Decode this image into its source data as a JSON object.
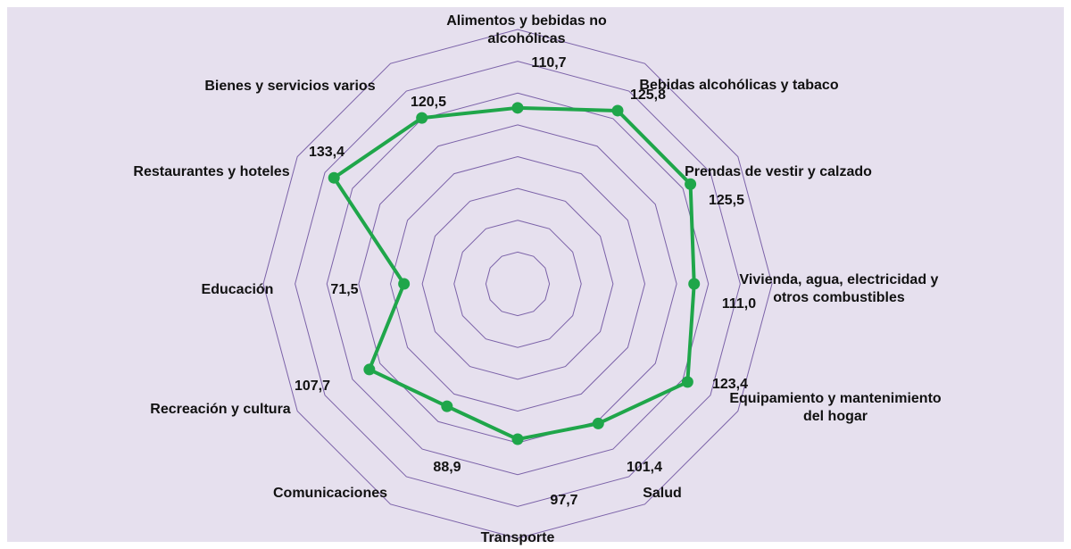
{
  "chart_data": {
    "type": "radar",
    "categories": [
      "Alimentos y bebidas no alcohólicas",
      "Bebidas alcohólicas y tabaco",
      "Prendas de vestir y calzado",
      "Vivienda, agua, electricidad y otros combustibles",
      "Equipamiento y mantenimiento del hogar",
      "Salud",
      "Transporte",
      "Comunicaciones",
      "Recreación y cultura",
      "Educación",
      "Restaurantes y hoteles",
      "Bienes y servicios varios"
    ],
    "values": [
      110.7,
      125.8,
      125.5,
      111.0,
      123.4,
      101.4,
      97.7,
      88.9,
      107.7,
      71.5,
      133.4,
      120.5
    ],
    "value_labels": [
      "110,7",
      "125,8",
      "125,5",
      "111,0",
      "123,4",
      "101,4",
      "97,7",
      "88,9",
      "107,7",
      "71,5",
      "133,4",
      "120,5"
    ],
    "color": "#1fa64a",
    "ylim": [
      0,
      160
    ],
    "yticks": [
      0,
      20,
      40,
      60,
      80,
      100,
      120,
      140,
      160
    ],
    "grid": true
  }
}
